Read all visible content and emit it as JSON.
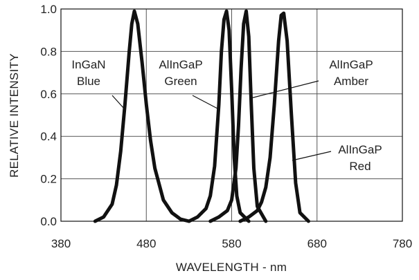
{
  "chart_data": {
    "type": "line",
    "xlabel": "WAVELENGTH - nm",
    "ylabel": "RELATIVE INTENSITY",
    "xlim": [
      380,
      780
    ],
    "ylim": [
      0,
      1.0
    ],
    "x_ticks": [
      "380",
      "480",
      "580",
      "680",
      "780"
    ],
    "y_ticks": [
      "0.0",
      "0.2",
      "0.4",
      "0.6",
      "0.8",
      "1.0"
    ],
    "grid": true,
    "series": [
      {
        "name": "InGaN Blue",
        "label_lines": [
          "InGaN",
          "Blue"
        ],
        "x": [
          420,
          430,
          440,
          445,
          450,
          455,
          460,
          463,
          466,
          470,
          475,
          480,
          485,
          490,
          500,
          510,
          520,
          530
        ],
        "y": [
          0.0,
          0.02,
          0.08,
          0.17,
          0.33,
          0.55,
          0.8,
          0.93,
          0.99,
          0.93,
          0.75,
          0.55,
          0.38,
          0.25,
          0.1,
          0.04,
          0.01,
          0.0
        ]
      },
      {
        "name": "AlInGaP Green",
        "label_lines": [
          "AlInGaP",
          "Green"
        ],
        "x": [
          530,
          540,
          550,
          555,
          560,
          565,
          568,
          571,
          574,
          577,
          580,
          583,
          586,
          590,
          600
        ],
        "y": [
          0.0,
          0.02,
          0.06,
          0.12,
          0.26,
          0.55,
          0.8,
          0.95,
          0.99,
          0.9,
          0.62,
          0.3,
          0.12,
          0.04,
          0.0
        ]
      },
      {
        "name": "AlInGaP Amber",
        "label_lines": [
          "AlInGaP",
          "Amber"
        ],
        "x": [
          555,
          565,
          575,
          580,
          585,
          588,
          591,
          594,
          597,
          600,
          603,
          606,
          610,
          620
        ],
        "y": [
          0.0,
          0.02,
          0.05,
          0.1,
          0.25,
          0.45,
          0.72,
          0.93,
          0.99,
          0.87,
          0.55,
          0.25,
          0.07,
          0.0
        ]
      },
      {
        "name": "AlInGaP Red",
        "label_lines": [
          "AlInGaP",
          "Red"
        ],
        "x": [
          590,
          600,
          610,
          615,
          620,
          625,
          630,
          635,
          638,
          641,
          645,
          650,
          655,
          660,
          670
        ],
        "y": [
          0.0,
          0.02,
          0.05,
          0.09,
          0.16,
          0.3,
          0.55,
          0.85,
          0.97,
          0.98,
          0.85,
          0.5,
          0.18,
          0.04,
          0.0
        ]
      }
    ]
  }
}
